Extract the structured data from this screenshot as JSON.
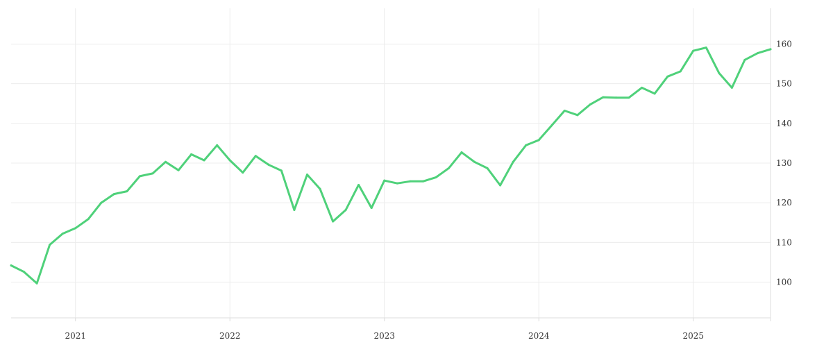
{
  "chart_data": {
    "type": "line",
    "title": "",
    "xlabel": "",
    "ylabel": "",
    "x_ticks": [
      "2021",
      "2022",
      "2023",
      "2024",
      "2025"
    ],
    "y_ticks": [
      100,
      110,
      120,
      130,
      140,
      150,
      160
    ],
    "xlim": [
      "2020-08",
      "2025-07"
    ],
    "ylim": [
      91,
      169
    ],
    "y_axis_position": "right",
    "grid": true,
    "legend": "none",
    "series": [
      {
        "color": "#4fd17a",
        "x": [
          "2020-08",
          "2020-09",
          "2020-10",
          "2020-11",
          "2020-12",
          "2021-01",
          "2021-02",
          "2021-03",
          "2021-04",
          "2021-05",
          "2021-06",
          "2021-07",
          "2021-08",
          "2021-09",
          "2021-10",
          "2021-11",
          "2021-12",
          "2022-01",
          "2022-02",
          "2022-03",
          "2022-04",
          "2022-05",
          "2022-06",
          "2022-07",
          "2022-08",
          "2022-09",
          "2022-10",
          "2022-11",
          "2022-12",
          "2023-01",
          "2023-02",
          "2023-03",
          "2023-04",
          "2023-05",
          "2023-06",
          "2023-07",
          "2023-08",
          "2023-09",
          "2023-10",
          "2023-11",
          "2023-12",
          "2024-01",
          "2024-02",
          "2024-03",
          "2024-04",
          "2024-05",
          "2024-06",
          "2024-07",
          "2024-08",
          "2024-09",
          "2024-10",
          "2024-11",
          "2024-12",
          "2025-01",
          "2025-02",
          "2025-03",
          "2025-04",
          "2025-05",
          "2025-06",
          "2025-07"
        ],
        "values": [
          104.2,
          102.6,
          99.7,
          109.4,
          112.2,
          113.6,
          115.9,
          120.0,
          122.2,
          122.9,
          126.7,
          127.4,
          130.3,
          128.2,
          132.2,
          130.7,
          134.5,
          130.7,
          127.6,
          131.8,
          129.6,
          128.1,
          118.2,
          127.1,
          123.5,
          115.3,
          118.2,
          124.5,
          118.7,
          125.6,
          124.9,
          125.4,
          125.4,
          126.4,
          128.7,
          132.7,
          130.3,
          128.7,
          124.4,
          130.3,
          134.5,
          135.8,
          139.5,
          143.2,
          142.1,
          144.8,
          146.6,
          146.5,
          146.5,
          149.0,
          147.5,
          151.8,
          153.1,
          158.3,
          159.1,
          152.7,
          149.0,
          156.0,
          157.7,
          158.7
        ]
      }
    ]
  }
}
